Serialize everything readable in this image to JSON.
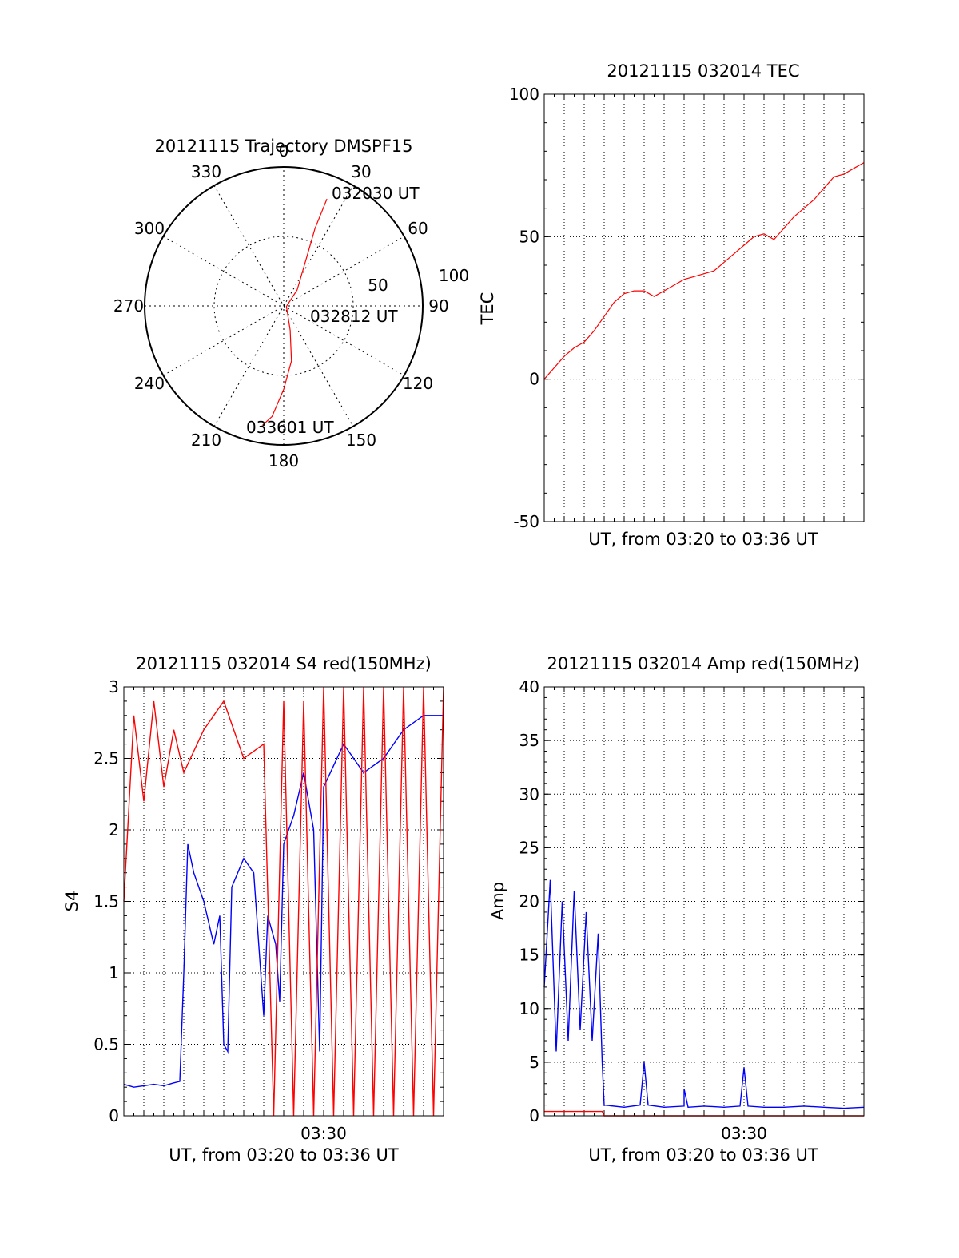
{
  "chart_data": [
    {
      "type": "polar",
      "title": "20121115 Trajectory DMSPF15",
      "angle_labels": [
        "0",
        "30",
        "60",
        "90",
        "120",
        "150",
        "180",
        "210",
        "240",
        "270",
        "300",
        "330"
      ],
      "radial_labels": [
        "50",
        "100"
      ],
      "rlim": [
        0,
        100
      ],
      "grid": true,
      "series": [
        {
          "color": "#ff0000",
          "points": [
            {
              "az": 22,
              "r": 83
            },
            {
              "az": 22,
              "r": 60
            },
            {
              "az": 25,
              "r": 40
            },
            {
              "az": 40,
              "r": 15
            },
            {
              "az": 100,
              "r": 2
            },
            {
              "az": 165,
              "r": 18
            },
            {
              "az": 172,
              "r": 40
            },
            {
              "az": 180,
              "r": 60
            },
            {
              "az": 186,
              "r": 80
            },
            {
              "az": 190,
              "r": 87
            }
          ]
        }
      ],
      "annotations": [
        "032030 UT",
        "032812 UT",
        "033601 UT"
      ]
    },
    {
      "type": "line",
      "title": "20121115 032014 TEC",
      "xlabel": "UT, from 03:20 to 03:36 UT",
      "ylabel": "TEC",
      "xlim": [
        0,
        16
      ],
      "ylim": [
        -50,
        100
      ],
      "yticks": [
        "-50",
        "0",
        "50",
        "100"
      ],
      "grid": true,
      "series": [
        {
          "color": "#ff0000",
          "points": [
            [
              0,
              0
            ],
            [
              0.5,
              4
            ],
            [
              1,
              8
            ],
            [
              1.5,
              11
            ],
            [
              2,
              13
            ],
            [
              2.5,
              17
            ],
            [
              3,
              22
            ],
            [
              3.5,
              27
            ],
            [
              4,
              30
            ],
            [
              4.5,
              31
            ],
            [
              5,
              31
            ],
            [
              5.5,
              29
            ],
            [
              6,
              31
            ],
            [
              6.5,
              33
            ],
            [
              7,
              35
            ],
            [
              7.5,
              36
            ],
            [
              8,
              37
            ],
            [
              8.5,
              38
            ],
            [
              9,
              41
            ],
            [
              9.5,
              44
            ],
            [
              10,
              47
            ],
            [
              10.5,
              50
            ],
            [
              11,
              51
            ],
            [
              11.5,
              49
            ],
            [
              12,
              53
            ],
            [
              12.5,
              57
            ],
            [
              13,
              60
            ],
            [
              13.5,
              63
            ],
            [
              14,
              67
            ],
            [
              14.5,
              71
            ],
            [
              15,
              72
            ],
            [
              15.5,
              74
            ],
            [
              16,
              76
            ]
          ]
        }
      ]
    },
    {
      "type": "line",
      "title": "20121115 032014 S4 red(150MHz)",
      "xlabel": "UT, from 03:20 to 03:36 UT",
      "ylabel": "S4",
      "xtick_labels": [
        "03:30"
      ],
      "xlim": [
        0,
        16
      ],
      "ylim": [
        0,
        3
      ],
      "yticks": [
        "0",
        "0.5",
        "1",
        "1.5",
        "2",
        "2.5",
        "3"
      ],
      "grid": true,
      "series": [
        {
          "color": "#0000ff",
          "points": [
            [
              0,
              0.22
            ],
            [
              0.5,
              0.2
            ],
            [
              1,
              0.21
            ],
            [
              1.5,
              0.22
            ],
            [
              2,
              0.21
            ],
            [
              2.5,
              0.23
            ],
            [
              2.8,
              0.24
            ],
            [
              3,
              1.0
            ],
            [
              3.2,
              1.9
            ],
            [
              3.5,
              1.7
            ],
            [
              4,
              1.5
            ],
            [
              4.5,
              1.2
            ],
            [
              4.8,
              1.4
            ],
            [
              5,
              0.5
            ],
            [
              5.2,
              0.45
            ],
            [
              5.4,
              1.6
            ],
            [
              6,
              1.8
            ],
            [
              6.5,
              1.7
            ],
            [
              7,
              0.7
            ],
            [
              7.2,
              1.4
            ],
            [
              7.6,
              1.2
            ],
            [
              7.8,
              0.8
            ],
            [
              8,
              1.9
            ],
            [
              8.5,
              2.1
            ],
            [
              9,
              2.4
            ],
            [
              9.5,
              2.0
            ],
            [
              9.8,
              0.45
            ],
            [
              10,
              2.3
            ],
            [
              11,
              2.6
            ],
            [
              12,
              2.4
            ],
            [
              13,
              2.5
            ],
            [
              14,
              2.7
            ],
            [
              15,
              2.8
            ],
            [
              16,
              2.8
            ]
          ]
        },
        {
          "color": "#ff0000",
          "points": [
            [
              0,
              1.5
            ],
            [
              0.5,
              2.8
            ],
            [
              1,
              2.2
            ],
            [
              1.5,
              2.9
            ],
            [
              2,
              2.3
            ],
            [
              2.5,
              2.7
            ],
            [
              3,
              2.4
            ],
            [
              4,
              2.7
            ],
            [
              5,
              2.9
            ],
            [
              6,
              2.5
            ],
            [
              7,
              2.6
            ],
            [
              7.5,
              0
            ],
            [
              8,
              2.9
            ],
            [
              8.5,
              0
            ],
            [
              9,
              2.9
            ],
            [
              9.5,
              0
            ],
            [
              10,
              3
            ],
            [
              10.5,
              0
            ],
            [
              11,
              3
            ],
            [
              11.5,
              0
            ],
            [
              12,
              3
            ],
            [
              12.5,
              0
            ],
            [
              13,
              3
            ],
            [
              13.5,
              0
            ],
            [
              14,
              3
            ],
            [
              14.5,
              0
            ],
            [
              15,
              3
            ],
            [
              15.5,
              0
            ],
            [
              16,
              3
            ]
          ]
        }
      ]
    },
    {
      "type": "line",
      "title": "20121115 032014 Amp red(150MHz)",
      "xlabel": "UT, from 03:20 to 03:36 UT",
      "ylabel": "Amp",
      "xtick_labels": [
        "03:30"
      ],
      "xlim": [
        0,
        16
      ],
      "ylim": [
        0,
        40
      ],
      "yticks": [
        "0",
        "5",
        "10",
        "15",
        "20",
        "25",
        "30",
        "35",
        "40"
      ],
      "grid": true,
      "series": [
        {
          "color": "#0000ff",
          "points": [
            [
              0,
              12
            ],
            [
              0.3,
              22
            ],
            [
              0.6,
              6
            ],
            [
              0.9,
              20
            ],
            [
              1.2,
              7
            ],
            [
              1.5,
              21
            ],
            [
              1.8,
              8
            ],
            [
              2.1,
              19
            ],
            [
              2.4,
              7
            ],
            [
              2.7,
              17
            ],
            [
              2.9,
              5
            ],
            [
              3,
              1
            ],
            [
              4,
              0.8
            ],
            [
              4.8,
              1
            ],
            [
              5,
              5
            ],
            [
              5.2,
              1
            ],
            [
              6,
              0.8
            ],
            [
              7,
              0.9
            ],
            [
              7,
              2.5
            ],
            [
              7.2,
              0.8
            ],
            [
              8,
              0.9
            ],
            [
              9,
              0.8
            ],
            [
              9.8,
              0.9
            ],
            [
              10,
              4.5
            ],
            [
              10.2,
              0.9
            ],
            [
              11,
              0.8
            ],
            [
              12,
              0.8
            ],
            [
              13,
              0.9
            ],
            [
              14,
              0.8
            ],
            [
              15,
              0.7
            ],
            [
              16,
              0.8
            ]
          ]
        },
        {
          "color": "#ff0000",
          "points": [
            [
              0,
              0.4
            ],
            [
              1,
              0.4
            ],
            [
              2,
              0.4
            ],
            [
              2.9,
              0.4
            ],
            [
              3,
              0
            ],
            [
              16,
              0
            ]
          ]
        }
      ]
    }
  ]
}
